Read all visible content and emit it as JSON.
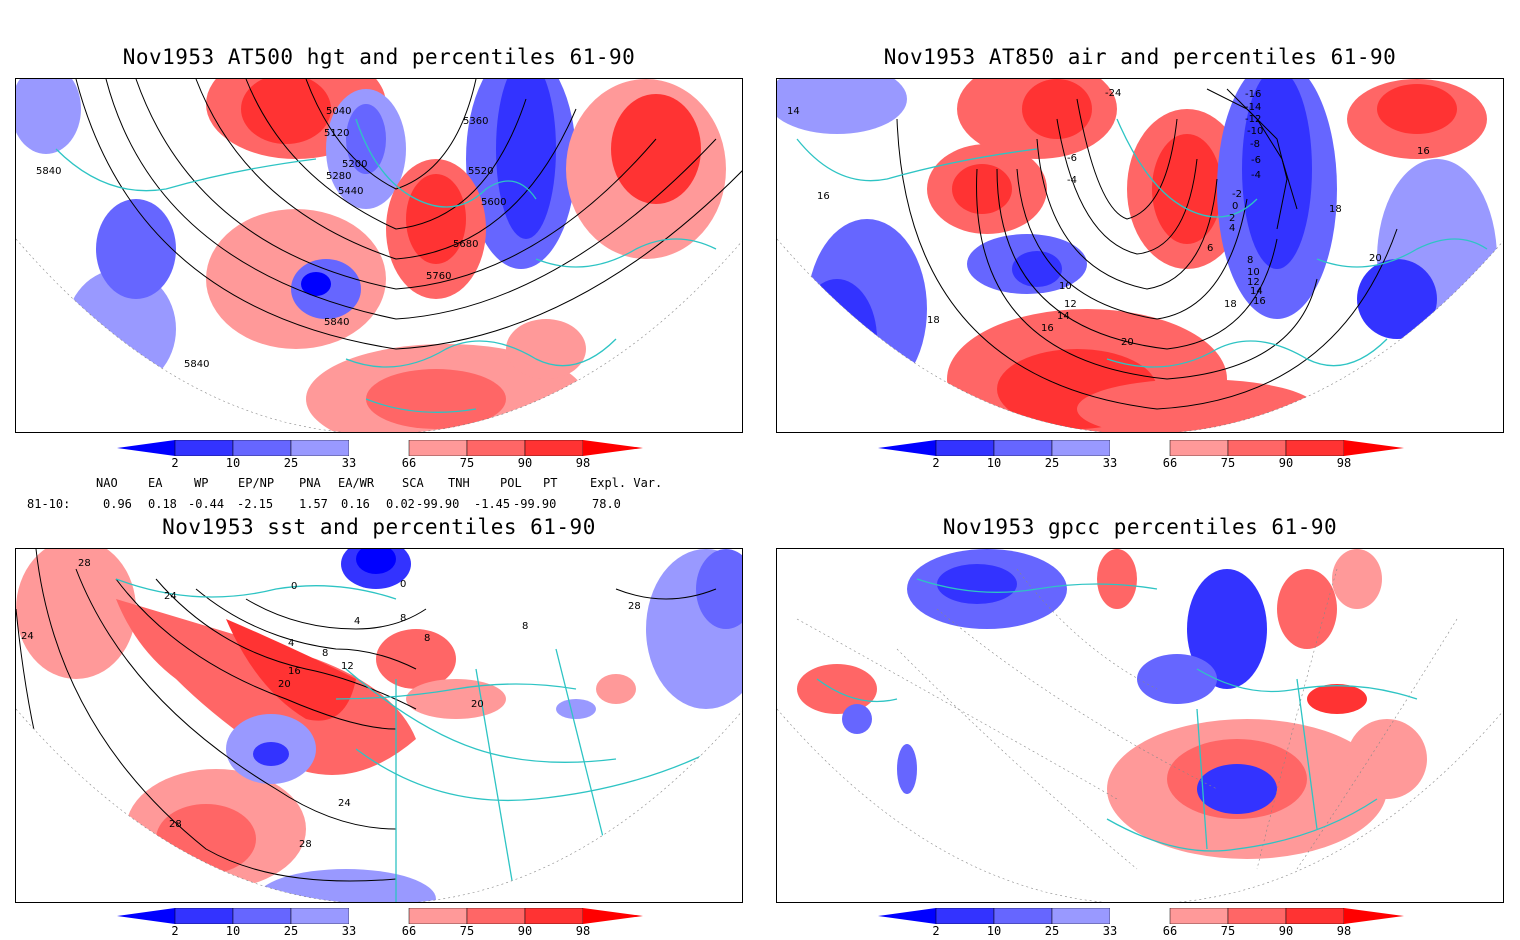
{
  "panels": [
    {
      "id": "p1",
      "title": "Nov1953 AT500 hgt and percentiles 61-90",
      "contour_labels": [
        "5040",
        "5120",
        "5200",
        "5280",
        "5360",
        "5440",
        "5520",
        "5600",
        "5680",
        "5760",
        "5840",
        "5840",
        "5840"
      ]
    },
    {
      "id": "p2",
      "title": "Nov1953 AT850 air and percentiles 61-90",
      "contour_labels": [
        "-24",
        "-16",
        "-14",
        "-12",
        "-10",
        "-8",
        "-6",
        "-4",
        "-2",
        "0",
        "2",
        "4",
        "6",
        "8",
        "10",
        "10",
        "12",
        "12",
        "14",
        "14",
        "16",
        "16",
        "16",
        "18",
        "18",
        "18",
        "20",
        "20",
        "14",
        "16",
        "-4",
        "-6"
      ]
    },
    {
      "id": "p3",
      "title": "Nov1953 sst and percentiles 61-90",
      "contour_labels": [
        "28",
        "24",
        "24",
        "20",
        "16",
        "12",
        "8",
        "4",
        "0",
        "0",
        "4",
        "8",
        "8",
        "20",
        "24",
        "28",
        "28",
        "28",
        "8"
      ]
    },
    {
      "id": "p4",
      "title": "Nov1953 gpcc percentiles 61-90",
      "contour_labels": []
    }
  ],
  "colorbar": {
    "labels": [
      "2",
      "10",
      "25",
      "33",
      "66",
      "75",
      "90",
      "98"
    ],
    "colors": [
      "#0000ff",
      "#3333ff",
      "#6666ff",
      "#9999ff",
      "#ffffff",
      "#ff9999",
      "#ff6666",
      "#ff3333",
      "#ff0000"
    ]
  },
  "indices": {
    "headers": [
      "NAO",
      "EA",
      "WP",
      "EP/NP",
      "PNA",
      "EA/WR",
      "SCA",
      "TNH",
      "POL",
      "PT",
      "Expl. Var."
    ],
    "row_label": "81-10:",
    "values": [
      "0.96",
      "0.18",
      "-0.44",
      "-2.15",
      "1.57",
      "0.16",
      "0.02",
      "-99.90",
      "-1.45",
      "-99.90",
      "78.0"
    ]
  }
}
